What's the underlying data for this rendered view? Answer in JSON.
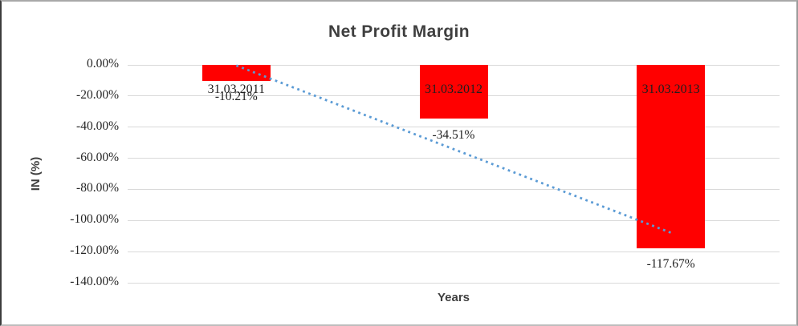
{
  "chart_data": {
    "type": "bar",
    "title": "Net Profit Margin",
    "xlabel": "Years",
    "ylabel": "IN (%)",
    "categories": [
      "31.03.2011",
      "31.03.2012",
      "31.03.2013"
    ],
    "series": [
      {
        "name": "Net Profit Margin",
        "values": [
          -10.21,
          -34.51,
          -117.67
        ]
      }
    ],
    "data_labels": [
      "-10.21%",
      "-34.51%",
      "-117.67%"
    ],
    "y_ticks": [
      {
        "label": "0.00%",
        "value": 0
      },
      {
        "label": "-20.00%",
        "value": -20
      },
      {
        "label": "-40.00%",
        "value": -40
      },
      {
        "label": "-60.00%",
        "value": -60
      },
      {
        "label": "-80.00%",
        "value": -80
      },
      {
        "label": "-100.00%",
        "value": -100
      },
      {
        "label": "-120.00%",
        "value": -120
      },
      {
        "label": "-140.00%",
        "value": -140
      }
    ],
    "ylim": [
      0,
      -140
    ],
    "grid": true,
    "legend": false,
    "colors": {
      "bar": "#FF0000",
      "trendline": "#5B9BD5",
      "gridline": "#D9D9D9",
      "tick_text": "#262626",
      "title_text": "#3F3F3F"
    },
    "trendline": {
      "type": "linear",
      "style": "dotted",
      "start_value": -0.41,
      "end_value": -107.86
    }
  }
}
